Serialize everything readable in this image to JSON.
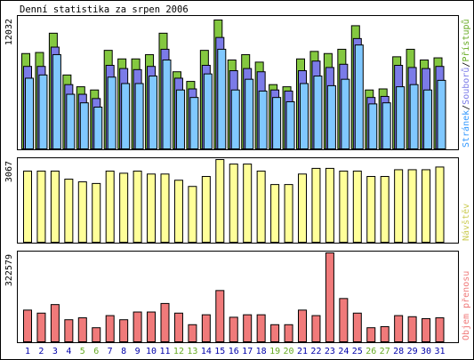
{
  "title": "Denní statistika za srpen 2006",
  "colors": {
    "background": "#ffffff",
    "frame": "#000000",
    "hits": "#84c840",
    "files": "#7b7be8",
    "pages": "#80c8ff",
    "visits": "#ffff99",
    "volume": "#f07a7a",
    "weekend_label": "#66aa22",
    "weekday_label": "#0000aa",
    "legend_pages": "#3399ff",
    "legend_files": "#7b7be8",
    "legend_hits": "#66aa22",
    "legend_visits": "#cccc55",
    "legend_volume": "#f07a7a",
    "legend_sep": "#000000"
  },
  "chart_data": [
    {
      "type": "bar",
      "title": "Denní statistika za srpen 2006",
      "max_label": "12032",
      "ylim": [
        0,
        12032
      ],
      "legend": {
        "placement": "right-vertical",
        "items": [
          "Stránek",
          "Souborů",
          "Přístupů"
        ],
        "separator": "/"
      },
      "categories": [
        "1",
        "2",
        "3",
        "4",
        "5",
        "6",
        "7",
        "8",
        "9",
        "10",
        "11",
        "12",
        "13",
        "14",
        "15",
        "16",
        "17",
        "18",
        "19",
        "20",
        "21",
        "22",
        "23",
        "24",
        "25",
        "26",
        "27",
        "28",
        "29",
        "30",
        "31"
      ],
      "weekend": [
        5,
        6,
        12,
        13,
        19,
        20,
        26,
        27
      ],
      "series": [
        {
          "name": "Přístupů",
          "values": [
            8900,
            9000,
            10800,
            6900,
            5800,
            5500,
            9200,
            8400,
            8400,
            8800,
            10800,
            7200,
            6300,
            9200,
            12032,
            8300,
            8800,
            8100,
            6000,
            5800,
            8400,
            9100,
            8900,
            9300,
            11500,
            5500,
            5600,
            8600,
            9300,
            8300,
            8500
          ]
        },
        {
          "name": "Souborů",
          "values": [
            7700,
            7700,
            9500,
            6000,
            5100,
            4700,
            7800,
            7500,
            7400,
            7700,
            9300,
            6600,
            5600,
            7800,
            10400,
            7300,
            7500,
            7200,
            5500,
            5400,
            7300,
            8200,
            7600,
            7900,
            10300,
            4800,
            4900,
            7800,
            7600,
            7500,
            7700
          ]
        },
        {
          "name": "Stránek",
          "values": [
            6600,
            6900,
            8800,
            5100,
            4300,
            3900,
            6700,
            6100,
            6100,
            6800,
            8300,
            5500,
            4800,
            7000,
            9300,
            5500,
            6500,
            5400,
            4800,
            4400,
            6100,
            6800,
            5900,
            6500,
            9700,
            4200,
            4300,
            5800,
            6000,
            5500,
            6400
          ]
        }
      ]
    },
    {
      "type": "bar",
      "max_label": "3067",
      "ylim": [
        0,
        3067
      ],
      "legend": {
        "placement": "right-vertical",
        "items": [
          "Návštěv"
        ]
      },
      "categories": [
        "1",
        "2",
        "3",
        "4",
        "5",
        "6",
        "7",
        "8",
        "9",
        "10",
        "11",
        "12",
        "13",
        "14",
        "15",
        "16",
        "17",
        "18",
        "19",
        "20",
        "21",
        "22",
        "23",
        "24",
        "25",
        "26",
        "27",
        "28",
        "29",
        "30",
        "31"
      ],
      "series": [
        {
          "name": "Návštěv",
          "values": [
            2640,
            2640,
            2640,
            2340,
            2240,
            2180,
            2640,
            2560,
            2640,
            2530,
            2530,
            2300,
            2070,
            2440,
            3067,
            2900,
            2900,
            2640,
            2140,
            2140,
            2530,
            2740,
            2740,
            2640,
            2640,
            2440,
            2440,
            2690,
            2690,
            2690,
            2790
          ]
        }
      ]
    },
    {
      "type": "bar",
      "max_label": "322579",
      "ylim": [
        0,
        322579
      ],
      "legend": {
        "placement": "right-vertical",
        "items": [
          "Objem přenosu"
        ]
      },
      "categories": [
        "1",
        "2",
        "3",
        "4",
        "5",
        "6",
        "7",
        "8",
        "9",
        "10",
        "11",
        "12",
        "13",
        "14",
        "15",
        "16",
        "17",
        "18",
        "19",
        "20",
        "21",
        "22",
        "23",
        "24",
        "25",
        "26",
        "27",
        "28",
        "29",
        "30",
        "31"
      ],
      "series": [
        {
          "name": "Objem přenosu",
          "values": [
            115000,
            104000,
            135000,
            80000,
            87000,
            51000,
            95000,
            80000,
            108000,
            108000,
            139000,
            104000,
            62000,
            98000,
            186000,
            89000,
            98000,
            98000,
            62000,
            62000,
            115000,
            95000,
            322579,
            157000,
            104000,
            51000,
            55000,
            95000,
            91000,
            84000,
            87000
          ]
        }
      ]
    }
  ]
}
